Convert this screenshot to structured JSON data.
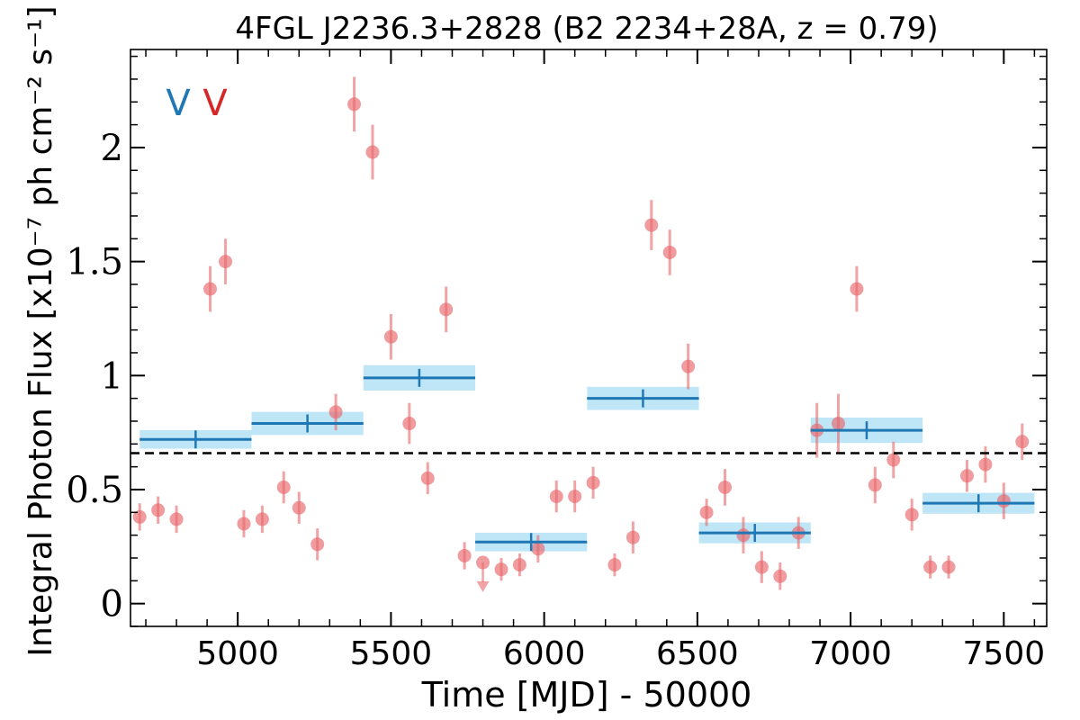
{
  "chart_data": {
    "type": "scatter",
    "title": "4FGL J2236.3+2828 (B2 2234+28A, z = 0.79)",
    "xlabel": "Time [MJD] - 50000",
    "ylabel": "Integral Photon Flux [x10⁻⁷ ph cm⁻² s⁻¹]",
    "xlim": [
      4650,
      7640
    ],
    "ylim": [
      -0.1,
      2.43
    ],
    "xticks": [
      5000,
      5500,
      6000,
      6500,
      7000,
      7500
    ],
    "xtick_labels": [
      "5000",
      "5500",
      "6000",
      "6500",
      "7000",
      "7500"
    ],
    "yticks": [
      0,
      0.5,
      1,
      1.5,
      2
    ],
    "ytick_labels": [
      "0",
      "0.5",
      "1",
      "1.5",
      "2"
    ],
    "annotations": [
      {
        "text": "V",
        "color": "#1f77b4"
      },
      {
        "text": "V",
        "color": "#d62728"
      }
    ],
    "reference_line": {
      "y": 0.66,
      "style": "dashed",
      "color": "#000000"
    },
    "monthly_points": {
      "color": "#e8676b",
      "x": [
        4680,
        4740,
        4800,
        4910,
        4960,
        5020,
        5080,
        5150,
        5200,
        5260,
        5320,
        5380,
        5440,
        5500,
        5560,
        5620,
        5680,
        5740,
        5800,
        5860,
        5920,
        5980,
        6040,
        6100,
        6160,
        6230,
        6290,
        6350,
        6410,
        6470,
        6530,
        6590,
        6650,
        6710,
        6770,
        6830,
        6890,
        6960,
        7020,
        7080,
        7140,
        7200,
        7260,
        7320,
        7380,
        7440,
        7500,
        7560
      ],
      "y": [
        0.38,
        0.41,
        0.37,
        1.38,
        1.5,
        0.35,
        0.37,
        0.51,
        0.42,
        0.26,
        0.84,
        2.19,
        1.98,
        1.17,
        0.79,
        0.55,
        1.29,
        0.21,
        0.18,
        0.15,
        0.17,
        0.24,
        0.47,
        0.47,
        0.53,
        0.17,
        0.29,
        1.66,
        1.54,
        1.04,
        0.4,
        0.51,
        0.3,
        0.16,
        0.12,
        0.31,
        0.76,
        0.79,
        1.38,
        0.52,
        0.63,
        0.39,
        0.16,
        0.16,
        0.56,
        0.61,
        0.45,
        0.71
      ],
      "yerr": [
        0.06,
        0.06,
        0.06,
        0.1,
        0.1,
        0.06,
        0.06,
        0.07,
        0.07,
        0.07,
        0.08,
        0.12,
        0.12,
        0.1,
        0.09,
        0.07,
        0.1,
        0.06,
        0.0,
        0.05,
        0.05,
        0.06,
        0.07,
        0.07,
        0.07,
        0.05,
        0.07,
        0.11,
        0.1,
        0.1,
        0.06,
        0.08,
        0.08,
        0.07,
        0.06,
        0.07,
        0.12,
        0.13,
        0.1,
        0.08,
        0.08,
        0.07,
        0.05,
        0.05,
        0.07,
        0.08,
        0.08,
        0.08
      ]
    },
    "upper_limit": {
      "x": 5800,
      "y": 0.07,
      "color": "#e8676b"
    },
    "bayesian_blocks": {
      "line_color": "#1f77b4",
      "band_color": "#bfe6f7",
      "blocks": [
        {
          "x_start": 4680,
          "x_end": 5045,
          "y": 0.72,
          "y_err": 0.025
        },
        {
          "x_start": 5045,
          "x_end": 5410,
          "y": 0.79,
          "y_err": 0.035
        },
        {
          "x_start": 5410,
          "x_end": 5775,
          "y": 0.99,
          "y_err": 0.04
        },
        {
          "x_start": 5775,
          "x_end": 6140,
          "y": 0.27,
          "y_err": 0.025
        },
        {
          "x_start": 6140,
          "x_end": 6505,
          "y": 0.9,
          "y_err": 0.035
        },
        {
          "x_start": 6505,
          "x_end": 6870,
          "y": 0.31,
          "y_err": 0.03
        },
        {
          "x_start": 6870,
          "x_end": 7235,
          "y": 0.76,
          "y_err": 0.04
        },
        {
          "x_start": 7235,
          "x_end": 7600,
          "y": 0.44,
          "y_err": 0.03
        }
      ]
    },
    "grid": false,
    "legend": "none"
  }
}
